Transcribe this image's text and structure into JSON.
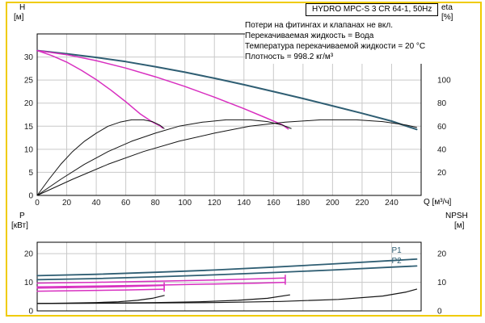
{
  "title_box": {
    "text": "HYDRO MPC-S 3 CR 64-1, 50Hz"
  },
  "notes": [
    "Потери на фитингах и клапанах не вкл.",
    "Перекачиваемая жидкость = Вода",
    "Температура перекачиваемой жидкости = 20 °C",
    "Плотность = 998.2 кг/м³"
  ],
  "axis_labels": {
    "head": "H",
    "head_unit": "[м]",
    "eta": "eta",
    "eta_unit": "[%]",
    "flow": "Q [м³/ч]",
    "power": "P",
    "power_unit": "[кВт]",
    "npsh": "NPSH",
    "npsh_unit": "[м]"
  },
  "colors": {
    "frame": "#f0cb00",
    "grid": "#c9c9c9",
    "axis": "#000000",
    "pump_blue": "#2f5e73",
    "pump_magenta": "#d82fc0",
    "curve_black": "#141414",
    "tick_text": "#1a1a1a"
  },
  "chart_data": [
    {
      "type": "line",
      "title": "HYDRO MPC-S 3 CR 64-1, 50Hz — Q/H and efficiency curves",
      "xlabel": "Q [м³/ч]",
      "ylabel_left": "H [м]",
      "ylabel_right": "eta [%]",
      "x": {
        "range": [
          0,
          260
        ],
        "ticks": [
          0,
          20,
          40,
          60,
          80,
          100,
          120,
          140,
          160,
          180,
          200,
          220,
          240
        ]
      },
      "y_left": {
        "range": [
          0,
          35
        ],
        "ticks": [
          0,
          5,
          10,
          15,
          20,
          25,
          30
        ]
      },
      "y_right": {
        "ticks": [
          20,
          40,
          60,
          80,
          100
        ],
        "scale_to_left": 0.25
      },
      "series": [
        {
          "name": "head-curve-3-pumps",
          "color": "#2f5e73",
          "width": 2,
          "axis": "left",
          "points": [
            [
              0,
              31.4
            ],
            [
              20,
              30.7
            ],
            [
              40,
              29.9
            ],
            [
              60,
              29.0
            ],
            [
              80,
              27.9
            ],
            [
              100,
              26.7
            ],
            [
              120,
              25.4
            ],
            [
              140,
              24.0
            ],
            [
              160,
              22.5
            ],
            [
              180,
              21.0
            ],
            [
              200,
              19.4
            ],
            [
              220,
              17.8
            ],
            [
              240,
              16.1
            ],
            [
              257,
              14.3
            ]
          ]
        },
        {
          "name": "head-curve-2-pumps",
          "color": "#d82fc0",
          "width": 1.5,
          "axis": "left",
          "points": [
            [
              0,
              31.4
            ],
            [
              20,
              30.5
            ],
            [
              40,
              29.2
            ],
            [
              60,
              27.6
            ],
            [
              80,
              25.7
            ],
            [
              100,
              23.6
            ],
            [
              120,
              21.3
            ],
            [
              140,
              18.8
            ],
            [
              155,
              16.8
            ],
            [
              166,
              15.3
            ],
            [
              170,
              14.4
            ]
          ]
        },
        {
          "name": "head-curve-1-pump",
          "color": "#d82fc0",
          "width": 1.5,
          "axis": "left",
          "points": [
            [
              0,
              31.4
            ],
            [
              10,
              30.3
            ],
            [
              20,
              28.9
            ],
            [
              30,
              27.1
            ],
            [
              40,
              25.1
            ],
            [
              50,
              22.8
            ],
            [
              60,
              20.3
            ],
            [
              70,
              17.6
            ],
            [
              78,
              15.9
            ],
            [
              83,
              15.1
            ],
            [
              85,
              14.6
            ]
          ]
        },
        {
          "name": "efficiency-1-pump",
          "color": "#141414",
          "width": 1,
          "axis": "right",
          "points": [
            [
              0,
              0
            ],
            [
              8,
              14
            ],
            [
              16,
              27
            ],
            [
              24,
              38
            ],
            [
              32,
              47
            ],
            [
              40,
              54
            ],
            [
              48,
              60
            ],
            [
              56,
              63.5
            ],
            [
              64,
              65.5
            ],
            [
              72,
              65.5
            ],
            [
              78,
              64
            ],
            [
              83,
              61
            ],
            [
              86,
              58
            ]
          ]
        },
        {
          "name": "efficiency-2-pumps",
          "color": "#141414",
          "width": 1,
          "axis": "right",
          "points": [
            [
              0,
              0
            ],
            [
              16,
              14
            ],
            [
              32,
              27
            ],
            [
              48,
              38
            ],
            [
              64,
              47
            ],
            [
              80,
              54
            ],
            [
              96,
              60
            ],
            [
              112,
              63.5
            ],
            [
              128,
              65.5
            ],
            [
              144,
              65.5
            ],
            [
              156,
              64
            ],
            [
              166,
              61
            ],
            [
              172,
              58
            ]
          ]
        },
        {
          "name": "efficiency-3-pumps",
          "color": "#141414",
          "width": 1,
          "axis": "right",
          "points": [
            [
              0,
              0
            ],
            [
              24,
              14
            ],
            [
              48,
              27
            ],
            [
              72,
              38
            ],
            [
              96,
              47
            ],
            [
              120,
              54
            ],
            [
              144,
              60
            ],
            [
              168,
              63.5
            ],
            [
              192,
              65.5
            ],
            [
              216,
              65.5
            ],
            [
              234,
              64
            ],
            [
              250,
              61
            ],
            [
              257,
              59
            ]
          ]
        }
      ],
      "annotations": []
    },
    {
      "type": "line",
      "title": "Power (P1, P2) and NPSH curves",
      "xlabel": "Q [м³/ч]",
      "ylabel_left": "P [кВт]",
      "ylabel_right": "NPSH [м]",
      "x": {
        "range": [
          0,
          260
        ],
        "ticks": [
          0,
          20,
          40,
          60,
          80,
          100,
          120,
          140,
          160,
          180,
          200,
          220,
          240
        ]
      },
      "y_left": {
        "range": [
          0,
          24
        ],
        "ticks": [
          0,
          10,
          20
        ]
      },
      "y_right": {
        "ticks": [
          0,
          10,
          20
        ],
        "scale_to_left": 1.0
      },
      "series": [
        {
          "name": "power-p1-3-pumps",
          "color": "#2f5e73",
          "width": 1.8,
          "axis": "left",
          "points": [
            [
              0,
              12.3
            ],
            [
              40,
              12.8
            ],
            [
              80,
              13.5
            ],
            [
              120,
              14.3
            ],
            [
              160,
              15.3
            ],
            [
              200,
              16.4
            ],
            [
              240,
              17.6
            ],
            [
              257,
              18.1
            ]
          ]
        },
        {
          "name": "power-p2-3-pumps",
          "color": "#2f5e73",
          "width": 1.8,
          "axis": "left",
          "points": [
            [
              0,
              10.9
            ],
            [
              40,
              11.3
            ],
            [
              80,
              11.9
            ],
            [
              120,
              12.6
            ],
            [
              160,
              13.4
            ],
            [
              200,
              14.3
            ],
            [
              240,
              15.3
            ],
            [
              257,
              15.7
            ]
          ]
        },
        {
          "name": "power-p1-2-pumps",
          "color": "#d82fc0",
          "width": 1.5,
          "axis": "left",
          "end_tick": true,
          "points": [
            [
              0,
              9.7
            ],
            [
              40,
              10.0
            ],
            [
              80,
              10.4
            ],
            [
              120,
              10.8
            ],
            [
              150,
              11.2
            ],
            [
              168,
              11.5
            ]
          ]
        },
        {
          "name": "power-p2-2-pumps",
          "color": "#d82fc0",
          "width": 1.5,
          "axis": "left",
          "end_tick": true,
          "points": [
            [
              0,
              8.4
            ],
            [
              40,
              8.7
            ],
            [
              80,
              9.0
            ],
            [
              120,
              9.4
            ],
            [
              150,
              9.7
            ],
            [
              168,
              10.0
            ]
          ]
        },
        {
          "name": "power-p1-1-pump",
          "color": "#d82fc0",
          "width": 1.5,
          "axis": "left",
          "end_tick": true,
          "points": [
            [
              0,
              8.0
            ],
            [
              30,
              8.2
            ],
            [
              60,
              8.5
            ],
            [
              86,
              8.9
            ]
          ]
        },
        {
          "name": "power-p2-1-pump",
          "color": "#d82fc0",
          "width": 1.5,
          "axis": "left",
          "end_tick": true,
          "points": [
            [
              0,
              6.9
            ],
            [
              30,
              7.1
            ],
            [
              60,
              7.3
            ],
            [
              86,
              7.6
            ]
          ]
        },
        {
          "name": "npsh-1-pump",
          "color": "#141414",
          "width": 1.2,
          "axis": "right",
          "points": [
            [
              0,
              2.6
            ],
            [
              20,
              2.7
            ],
            [
              40,
              2.9
            ],
            [
              55,
              3.2
            ],
            [
              68,
              3.7
            ],
            [
              78,
              4.4
            ],
            [
              86,
              5.4
            ]
          ]
        },
        {
          "name": "npsh-2-pumps",
          "color": "#141414",
          "width": 1.2,
          "axis": "right",
          "points": [
            [
              0,
              2.6
            ],
            [
              40,
              2.7
            ],
            [
              80,
              2.9
            ],
            [
              110,
              3.2
            ],
            [
              136,
              3.7
            ],
            [
              156,
              4.4
            ],
            [
              171,
              5.6
            ]
          ]
        },
        {
          "name": "npsh-3-pumps",
          "color": "#141414",
          "width": 1.2,
          "axis": "right",
          "points": [
            [
              0,
              2.6
            ],
            [
              60,
              2.7
            ],
            [
              120,
              2.9
            ],
            [
              165,
              3.3
            ],
            [
              204,
              4.0
            ],
            [
              234,
              5.2
            ],
            [
              250,
              6.6
            ],
            [
              257,
              7.6
            ]
          ]
        }
      ],
      "annotations": [
        {
          "text": "P1",
          "x": 240,
          "y": 20.3,
          "color": "#2f5e73"
        },
        {
          "text": "P2",
          "x": 240,
          "y": 16.6,
          "color": "#2f5e73"
        }
      ]
    }
  ]
}
